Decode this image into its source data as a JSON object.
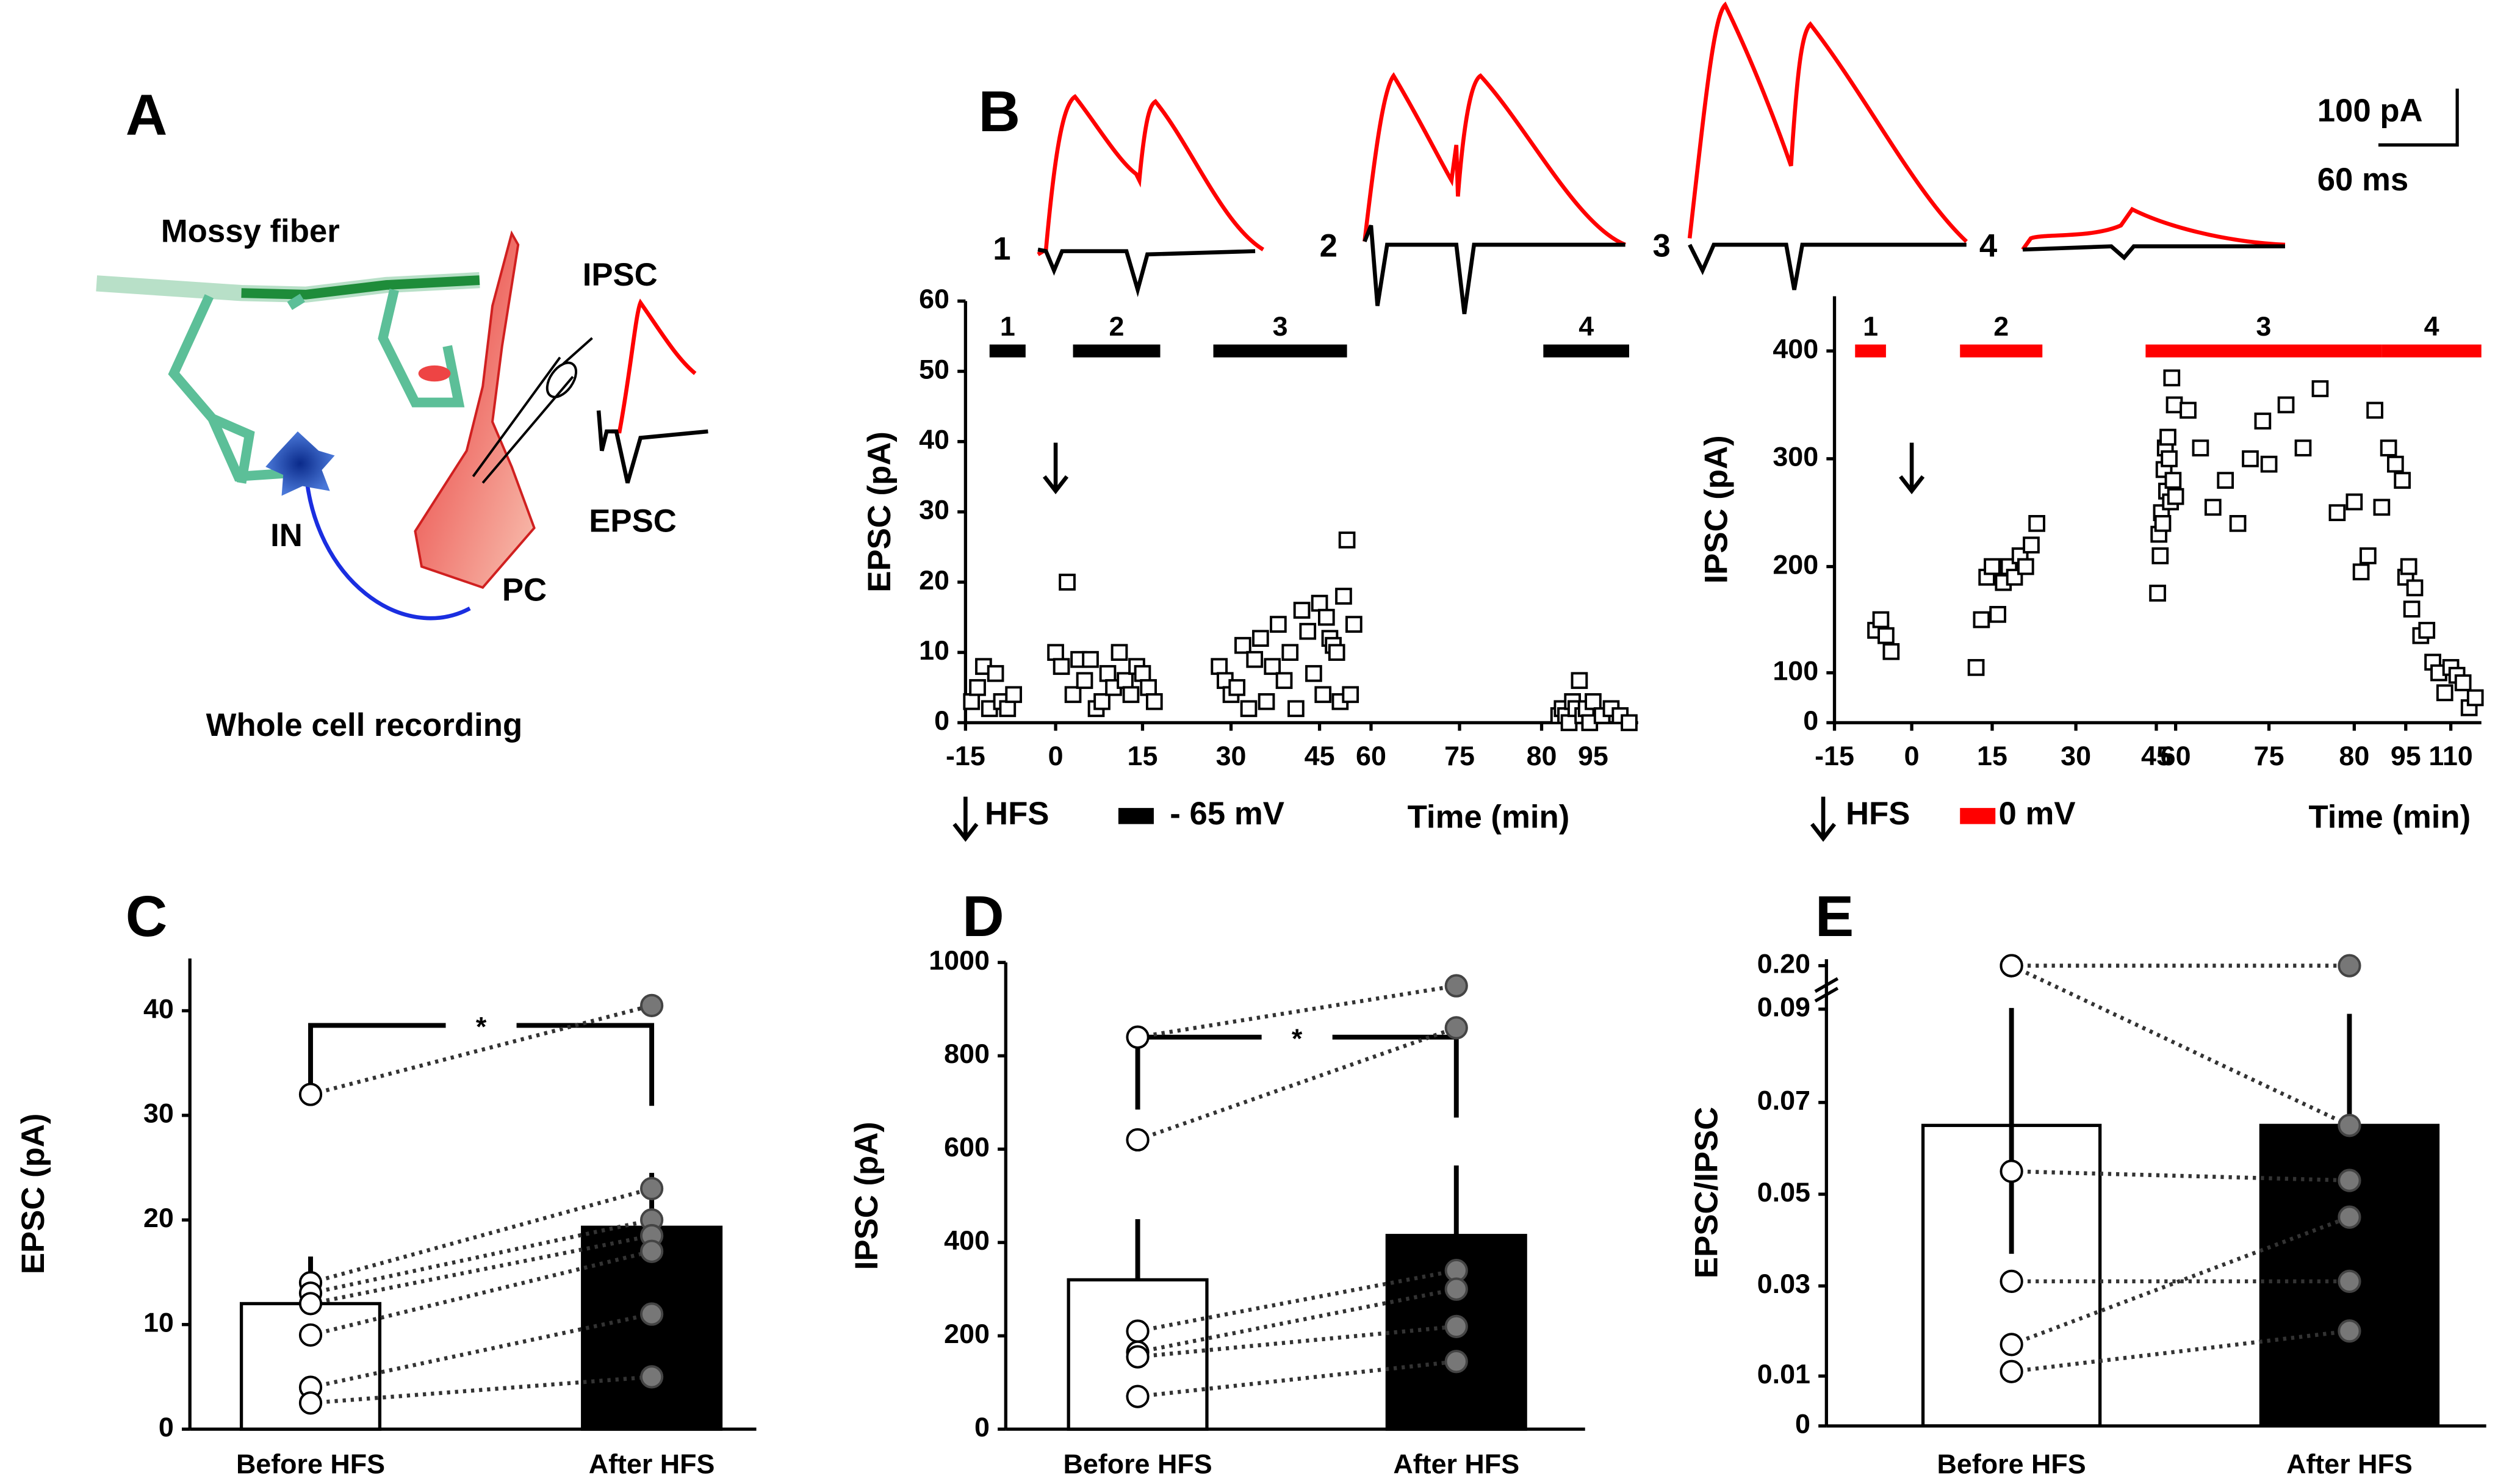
{
  "diagram": {
    "label": "A",
    "mossy_fiber": "Mossy fiber",
    "ipsc": "IPSC",
    "epsc": "EPSC",
    "in": "IN",
    "pc": "PC",
    "caption": "Whole cell recording"
  },
  "traces": {
    "label": "B",
    "scale_current": "100 pA",
    "scale_time": "60 ms",
    "numbers": [
      "1",
      "2",
      "3",
      "4"
    ]
  },
  "chart_data": [
    {
      "type": "scatter",
      "ylabel": "EPSC (pA)",
      "xlabel": "Time (min)",
      "xlim": [
        -15,
        100
      ],
      "xticks": [
        -15,
        0,
        15,
        30,
        45,
        60,
        75,
        80,
        95
      ],
      "ylim": [
        0,
        60
      ],
      "yticks": [
        0,
        10,
        20,
        30,
        40,
        50,
        60
      ],
      "x": [
        -14,
        -13,
        -12,
        -11,
        -10,
        -9,
        -8,
        -7,
        0,
        1,
        2,
        3,
        4,
        5,
        6,
        7,
        8,
        9,
        10,
        11,
        12,
        13,
        14,
        15,
        16,
        17,
        28,
        29,
        30,
        31,
        32,
        33,
        34,
        35,
        36,
        37,
        38,
        39,
        40,
        41,
        42,
        43,
        44,
        45,
        46,
        47,
        48,
        49,
        50,
        51,
        52,
        53,
        54,
        55,
        85,
        86,
        87,
        88,
        89,
        90,
        91,
        92,
        93,
        94,
        95,
        96,
        97,
        98,
        99
      ],
      "values": [
        3,
        5,
        8,
        2,
        7,
        3,
        2,
        4,
        10,
        8,
        20,
        4,
        9,
        6,
        9,
        2,
        3,
        7,
        5,
        10,
        6,
        4,
        8,
        7,
        5,
        3,
        8,
        6,
        4,
        5,
        11,
        2,
        9,
        12,
        3,
        8,
        14,
        6,
        10,
        2,
        16,
        13,
        7,
        17,
        4,
        15,
        12,
        11,
        10,
        3,
        18,
        26,
        4,
        14,
        1,
        2,
        1,
        0,
        3,
        2,
        6,
        1,
        2,
        0,
        3,
        1,
        2,
        1,
        0
      ],
      "periods": [
        {
          "label": "1",
          "start": -11,
          "end": -5
        },
        {
          "label": "2",
          "start": 3,
          "end": 18
        },
        {
          "label": "3",
          "start": 27,
          "end": 53
        },
        {
          "label": "4",
          "start": 80.5,
          "end": 99
        }
      ],
      "period_color": "#000000",
      "hfs_time": 0,
      "hfs_label": "HFS",
      "hold_label": "- 65 mV"
    },
    {
      "type": "scatter",
      "ylabel": "IPSC (pA)",
      "xlabel": "Time (min)",
      "xlim": [
        -15,
        120
      ],
      "xticks": [
        -15,
        0,
        15,
        30,
        45,
        60,
        75,
        80,
        95,
        110
      ],
      "ylim": [
        0,
        450
      ],
      "yticks": [
        0,
        100,
        200,
        300,
        400
      ],
      "x": [
        -7,
        -6,
        -5,
        -4,
        12,
        13,
        14,
        15,
        16,
        17,
        18,
        19,
        20,
        21,
        22,
        23,
        46,
        47,
        48,
        49,
        50,
        51,
        52,
        53,
        54,
        55,
        56,
        57,
        58,
        59,
        60,
        62,
        64,
        66,
        68,
        70,
        72,
        74,
        75,
        76,
        77,
        78,
        79,
        80,
        82,
        84,
        86,
        88,
        90,
        92,
        94,
        95,
        96,
        97,
        98,
        100,
        102,
        104,
        106,
        108,
        110,
        112,
        114,
        116,
        118
      ],
      "values": [
        140,
        150,
        135,
        120,
        105,
        150,
        190,
        200,
        155,
        185,
        200,
        190,
        210,
        200,
        220,
        240,
        175,
        230,
        210,
        250,
        240,
        290,
        310,
        270,
        320,
        300,
        260,
        375,
        280,
        350,
        265,
        345,
        310,
        255,
        280,
        240,
        300,
        335,
        295,
        350,
        310,
        365,
        250,
        260,
        195,
        210,
        345,
        255,
        310,
        295,
        280,
        190,
        200,
        160,
        180,
        135,
        140,
        110,
        100,
        60,
        105,
        95,
        80,
        30,
        50
      ],
      "periods": [
        {
          "label": "1",
          "start": -11,
          "end": -5
        },
        {
          "label": "2",
          "start": 9,
          "end": 24
        },
        {
          "label": "3",
          "start": 43,
          "end": 88
        },
        {
          "label": "4",
          "start": 88,
          "end": 120
        }
      ],
      "period_color": "#ff0000",
      "hfs_time": 0,
      "hfs_label": "HFS",
      "hold_label": "0 mV"
    },
    {
      "type": "bar",
      "label": "C",
      "ylabel": "EPSC (pA)",
      "categories": [
        "Before HFS",
        "After HFS"
      ],
      "values": [
        12,
        19.3
      ],
      "errors": [
        4.5,
        5.2
      ],
      "error_direction": "up",
      "colors": [
        "#ffffff",
        "#000000"
      ],
      "pairs_before": [
        32,
        14,
        13,
        12,
        9,
        4,
        2.5
      ],
      "pairs_after": [
        40.5,
        23,
        20,
        18.5,
        17,
        11,
        5
      ],
      "point_colors": [
        "#ffffff",
        "#777777"
      ],
      "significance": {
        "label": "*",
        "level": 38.6
      },
      "ylim": [
        0,
        45
      ],
      "yticks": [
        0,
        10,
        20,
        30,
        40
      ]
    },
    {
      "type": "bar",
      "label": "D",
      "ylabel": "IPSC (pA)",
      "categories": [
        "Before HFS",
        "After HFS"
      ],
      "values": [
        320,
        415
      ],
      "errors": [
        130,
        150
      ],
      "error_direction": "up",
      "colors": [
        "#ffffff",
        "#000000"
      ],
      "pairs_before": [
        840,
        620,
        210,
        165,
        155,
        70
      ],
      "pairs_after": [
        950,
        860,
        340,
        300,
        220,
        145
      ],
      "point_colors": [
        "#ffffff",
        "#777777"
      ],
      "significance": {
        "label": "*",
        "level": 840
      },
      "ylim": [
        0,
        1000
      ],
      "yticks": [
        0,
        200,
        400,
        600,
        800,
        1000
      ]
    },
    {
      "type": "bar",
      "label": "E",
      "ylabel": "EPSC/IPSC",
      "categories": [
        "Before HFS",
        "After HFS"
      ],
      "values": [
        0.065,
        0.065
      ],
      "errors": [
        0.028,
        0.024
      ],
      "error_direction": "both",
      "colors": [
        "#ffffff",
        "#000000"
      ],
      "pairs_before": [
        0.2,
        0.2,
        0.055,
        0.031,
        0.017,
        0.011
      ],
      "pairs_after": [
        0.2,
        0.065,
        0.053,
        0.031,
        0.045,
        0.02
      ],
      "point_colors": [
        "#ffffff",
        "#777777"
      ],
      "ylim": [
        0,
        0.21
      ],
      "yticks": [
        0,
        0.01,
        0.03,
        0.05,
        0.07,
        0.09,
        {
          "value": 0.2,
          "label": "0.20"
        }
      ]
    }
  ]
}
